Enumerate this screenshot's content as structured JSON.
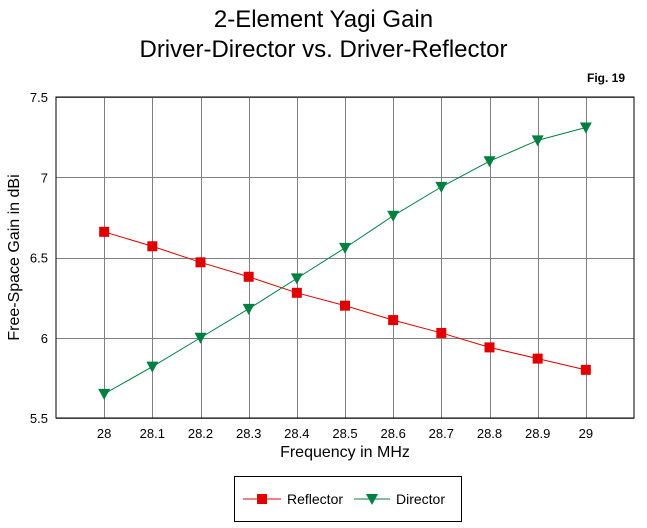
{
  "chart_data": {
    "type": "line",
    "title": "2-Element Yagi Gain",
    "subtitle": "Driver-Director vs. Driver-Reflector",
    "annotation": "Fig. 19",
    "xlabel": "Frequency in MHz",
    "ylabel": "Free-Space Gain in dBi",
    "x": [
      28,
      28.1,
      28.2,
      28.3,
      28.4,
      28.5,
      28.6,
      28.7,
      28.8,
      28.9,
      29
    ],
    "x_tick_labels": [
      "28",
      "28.1",
      "28.2",
      "28.3",
      "28.4",
      "28.5",
      "28.6",
      "28.7",
      "28.8",
      "28.9",
      "29"
    ],
    "xlim": [
      27.9,
      29.1
    ],
    "ylim": [
      5.5,
      7.5
    ],
    "y_ticks": [
      5.5,
      6,
      6.5,
      7,
      7.5
    ],
    "y_tick_labels": [
      "5.5",
      "6",
      "6.5",
      "7",
      "7.5"
    ],
    "grid": true,
    "legend_position": "bottom-center",
    "series": [
      {
        "name": "Reflector",
        "color": "#e00000",
        "marker": "square",
        "values": [
          6.66,
          6.57,
          6.47,
          6.38,
          6.28,
          6.2,
          6.11,
          6.03,
          5.94,
          5.87,
          5.8
        ]
      },
      {
        "name": "Director",
        "color": "#008040",
        "marker": "triangle-down",
        "values": [
          5.65,
          5.82,
          6.0,
          6.18,
          6.37,
          6.56,
          6.76,
          6.94,
          7.1,
          7.23,
          7.31
        ]
      }
    ]
  }
}
